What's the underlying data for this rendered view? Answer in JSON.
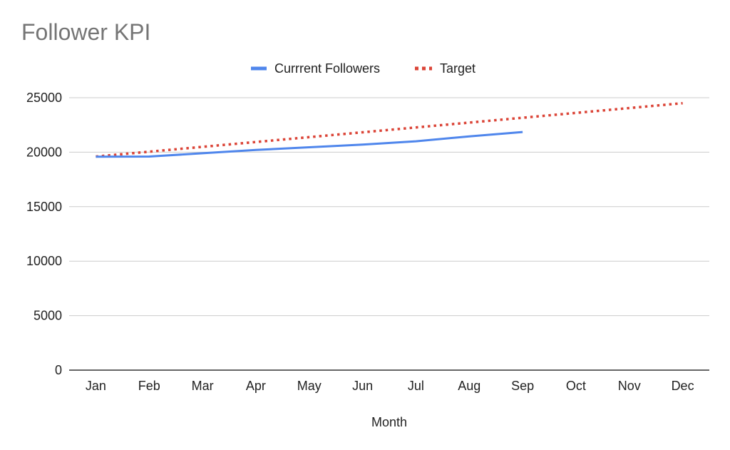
{
  "chart_data": {
    "type": "line",
    "title": "Follower KPI",
    "xlabel": "Month",
    "ylabel": "",
    "categories": [
      "Jan",
      "Feb",
      "Mar",
      "Apr",
      "May",
      "Jun",
      "Jul",
      "Aug",
      "Sep",
      "Oct",
      "Nov",
      "Dec"
    ],
    "ylim": [
      0,
      25000
    ],
    "yticks": [
      0,
      5000,
      10000,
      15000,
      20000,
      25000
    ],
    "grid": true,
    "legend_position": "top-center",
    "series": [
      {
        "name": "Currrent Followers",
        "color": "#4f86ec",
        "style": "solid",
        "values": [
          19580,
          19600,
          19900,
          20200,
          20450,
          20700,
          21000,
          21450,
          21850,
          null,
          null,
          null
        ]
      },
      {
        "name": "Target",
        "color": "#db4437",
        "style": "dotted",
        "values": [
          19600,
          20045,
          20490,
          20935,
          21380,
          21825,
          22270,
          22715,
          23160,
          23605,
          24050,
          24495
        ]
      }
    ]
  }
}
